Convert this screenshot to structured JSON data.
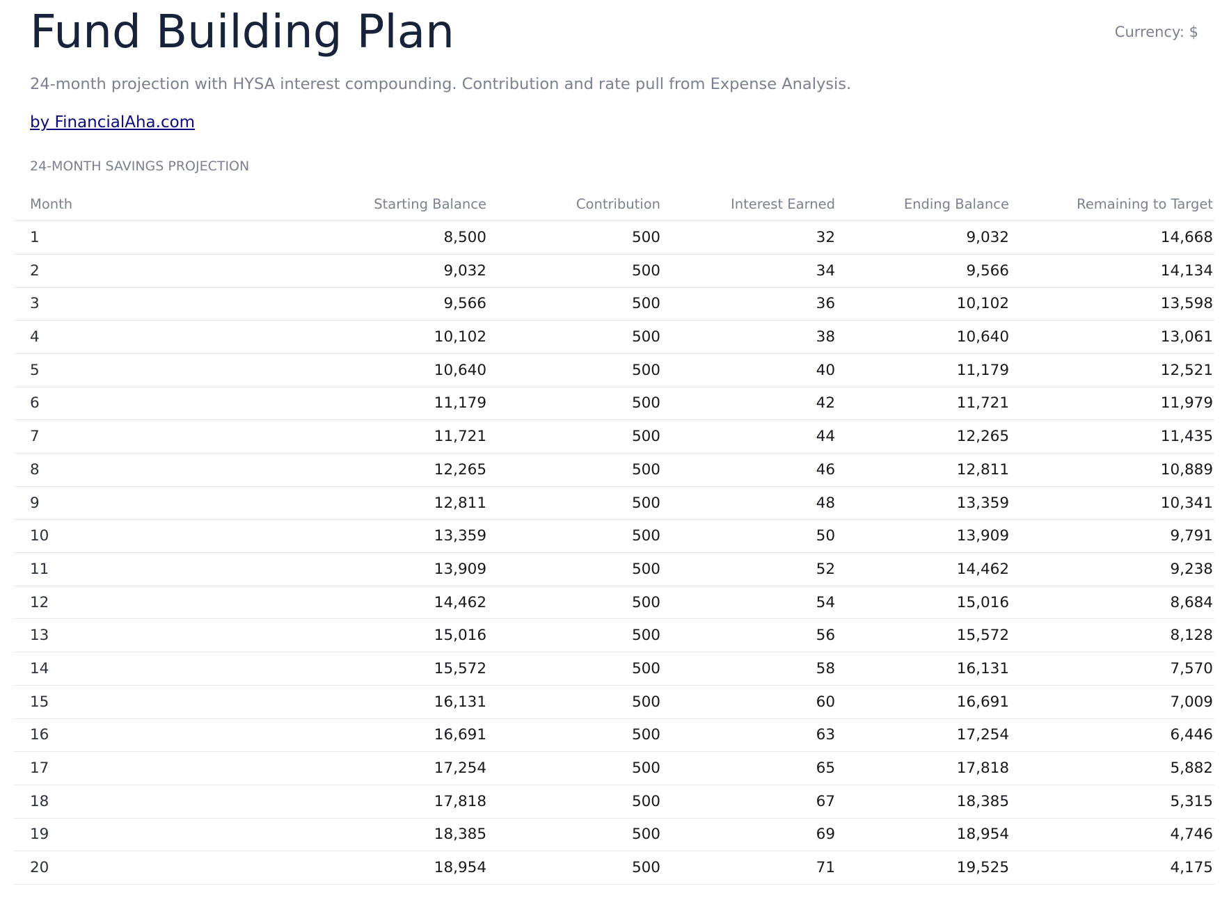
{
  "header": {
    "title": "Fund Building Plan",
    "currency": "Currency: $",
    "subtitle": "24-month projection with HYSA interest compounding. Contribution and rate pull from Expense Analysis.",
    "link": "by FinancialAha.com"
  },
  "section": {
    "title": "24-MONTH SAVINGS PROJECTION"
  },
  "table": {
    "columns": [
      "Month",
      "Starting Balance",
      "Contribution",
      "Interest Earned",
      "Ending Balance",
      "Remaining to Target"
    ],
    "rows": [
      [
        "1",
        "8,500",
        "500",
        "32",
        "9,032",
        "14,668"
      ],
      [
        "2",
        "9,032",
        "500",
        "34",
        "9,566",
        "14,134"
      ],
      [
        "3",
        "9,566",
        "500",
        "36",
        "10,102",
        "13,598"
      ],
      [
        "4",
        "10,102",
        "500",
        "38",
        "10,640",
        "13,061"
      ],
      [
        "5",
        "10,640",
        "500",
        "40",
        "11,179",
        "12,521"
      ],
      [
        "6",
        "11,179",
        "500",
        "42",
        "11,721",
        "11,979"
      ],
      [
        "7",
        "11,721",
        "500",
        "44",
        "12,265",
        "11,435"
      ],
      [
        "8",
        "12,265",
        "500",
        "46",
        "12,811",
        "10,889"
      ],
      [
        "9",
        "12,811",
        "500",
        "48",
        "13,359",
        "10,341"
      ],
      [
        "10",
        "13,359",
        "500",
        "50",
        "13,909",
        "9,791"
      ],
      [
        "11",
        "13,909",
        "500",
        "52",
        "14,462",
        "9,238"
      ],
      [
        "12",
        "14,462",
        "500",
        "54",
        "15,016",
        "8,684"
      ],
      [
        "13",
        "15,016",
        "500",
        "56",
        "15,572",
        "8,128"
      ],
      [
        "14",
        "15,572",
        "500",
        "58",
        "16,131",
        "7,570"
      ],
      [
        "15",
        "16,131",
        "500",
        "60",
        "16,691",
        "7,009"
      ],
      [
        "16",
        "16,691",
        "500",
        "63",
        "17,254",
        "6,446"
      ],
      [
        "17",
        "17,254",
        "500",
        "65",
        "17,818",
        "5,882"
      ],
      [
        "18",
        "17,818",
        "500",
        "67",
        "18,385",
        "5,315"
      ],
      [
        "19",
        "18,385",
        "500",
        "69",
        "18,954",
        "4,746"
      ],
      [
        "20",
        "18,954",
        "500",
        "71",
        "19,525",
        "4,175"
      ]
    ]
  }
}
